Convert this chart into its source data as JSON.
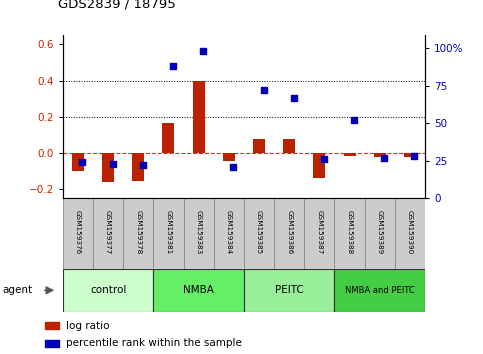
{
  "title": "GDS2839 / 18795",
  "samples": [
    "GSM159376",
    "GSM159377",
    "GSM159378",
    "GSM159381",
    "GSM159383",
    "GSM159384",
    "GSM159385",
    "GSM159386",
    "GSM159387",
    "GSM159388",
    "GSM159389",
    "GSM159390"
  ],
  "log_ratio": [
    -0.1,
    -0.16,
    -0.155,
    0.165,
    0.4,
    -0.045,
    0.075,
    0.075,
    -0.14,
    -0.015,
    -0.02,
    -0.02
  ],
  "percentile_rank": [
    24,
    23,
    22,
    88,
    98,
    21,
    72,
    67,
    26,
    52,
    27,
    28
  ],
  "groups": [
    {
      "label": "control",
      "start": 0,
      "end": 3,
      "color": "#ccffcc"
    },
    {
      "label": "NMBA",
      "start": 3,
      "end": 6,
      "color": "#66ee66"
    },
    {
      "label": "PEITC",
      "start": 6,
      "end": 9,
      "color": "#99ee99"
    },
    {
      "label": "NMBA and PEITC",
      "start": 9,
      "end": 12,
      "color": "#44cc44"
    }
  ],
  "ylim_left": [
    -0.25,
    0.65
  ],
  "ylim_right": [
    0,
    108.33
  ],
  "yticks_left": [
    -0.2,
    0.0,
    0.2,
    0.4,
    0.6
  ],
  "yticks_right": [
    0,
    25,
    50,
    75,
    100
  ],
  "ytick_labels_right": [
    "0",
    "25",
    "50",
    "75",
    "100%"
  ],
  "hlines": [
    0.2,
    0.4
  ],
  "bar_color": "#bb2200",
  "dot_color": "#0000bb",
  "dashed_line_color": "#cc3333",
  "background_color": "#ffffff",
  "plot_bg_color": "#ffffff",
  "legend_log": "log ratio",
  "legend_pct": "percentile rank within the sample"
}
